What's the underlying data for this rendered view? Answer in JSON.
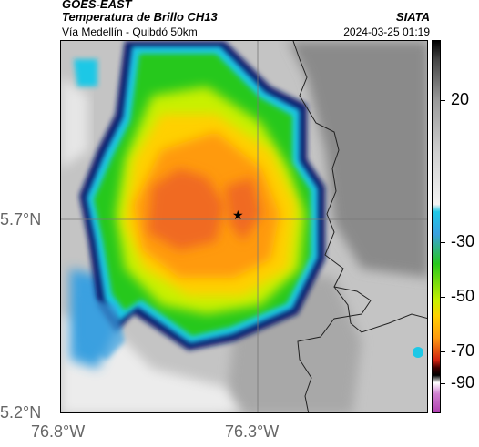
{
  "header": {
    "satellite": "GOES-EAST",
    "product": "Temperatura de Brillo CH13",
    "route": "Vía Medellín - Quibdó 50km",
    "org": "SIATA",
    "datetime": "2024-03-25 01:19"
  },
  "axes": {
    "lat_labels": [
      "5.7°N",
      "5.2°N"
    ],
    "lon_labels": [
      "76.8°W",
      "76.3°W"
    ]
  },
  "colorbar": {
    "ticks": [
      "20",
      "-30",
      "-50",
      "-70",
      "-90"
    ],
    "stops": [
      {
        "label": "20",
        "color": "#9a9a9a"
      },
      {
        "label": "-30",
        "color": "#1fd010"
      },
      {
        "label": "-50",
        "color": "#f2c018"
      },
      {
        "label": "-70",
        "color": "#000000"
      },
      {
        "label": "-90",
        "color": "#b040b0"
      }
    ]
  },
  "map": {
    "marker": "star-icon",
    "storm_colors": [
      "#0a1a6e",
      "#1ec8e6",
      "#27c81c",
      "#c8f000",
      "#ffd000",
      "#ff9a10",
      "#f06a20"
    ],
    "background_colors": [
      "#8c8c8c",
      "#c8c8c8",
      "#eeeeee"
    ]
  }
}
